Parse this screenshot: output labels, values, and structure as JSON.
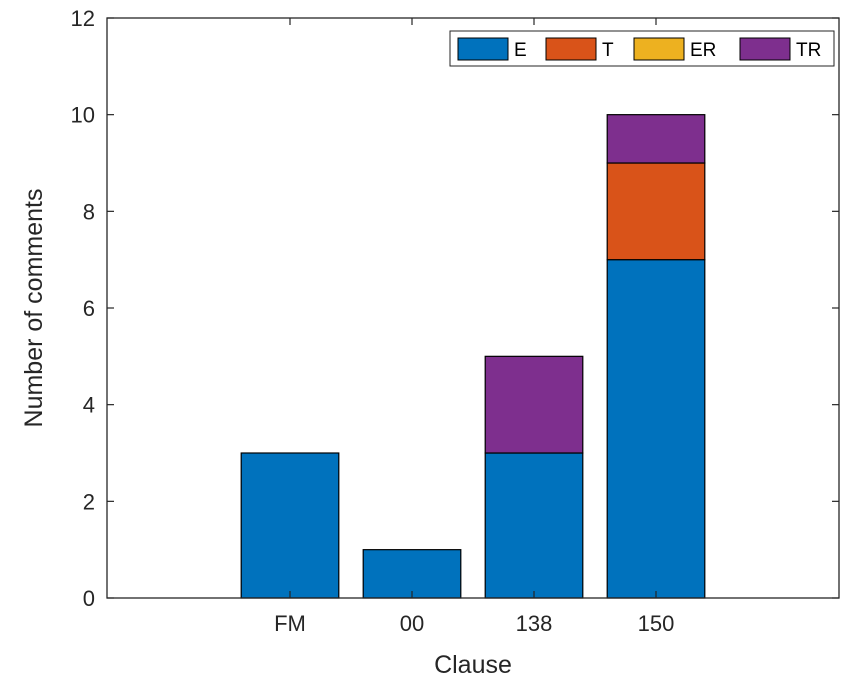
{
  "chart_data": {
    "type": "bar",
    "stacked": true,
    "categories": [
      "FM",
      "00",
      "138",
      "150"
    ],
    "series": [
      {
        "name": "E",
        "color": "#0072BD",
        "values": [
          3,
          1,
          3,
          7
        ]
      },
      {
        "name": "T",
        "color": "#D95319",
        "values": [
          0,
          0,
          0,
          2
        ]
      },
      {
        "name": "ER",
        "color": "#EDB120",
        "values": [
          0,
          0,
          0,
          0
        ]
      },
      {
        "name": "TR",
        "color": "#7E2F8E",
        "values": [
          0,
          0,
          2,
          1
        ]
      }
    ],
    "xlabel": "Clause",
    "ylabel": "Number of comments",
    "ylim": [
      0,
      12
    ],
    "yticks": [
      0,
      2,
      4,
      6,
      8,
      10,
      12
    ],
    "grid": false,
    "legend_position": "top-right",
    "legend_orientation": "horizontal"
  }
}
